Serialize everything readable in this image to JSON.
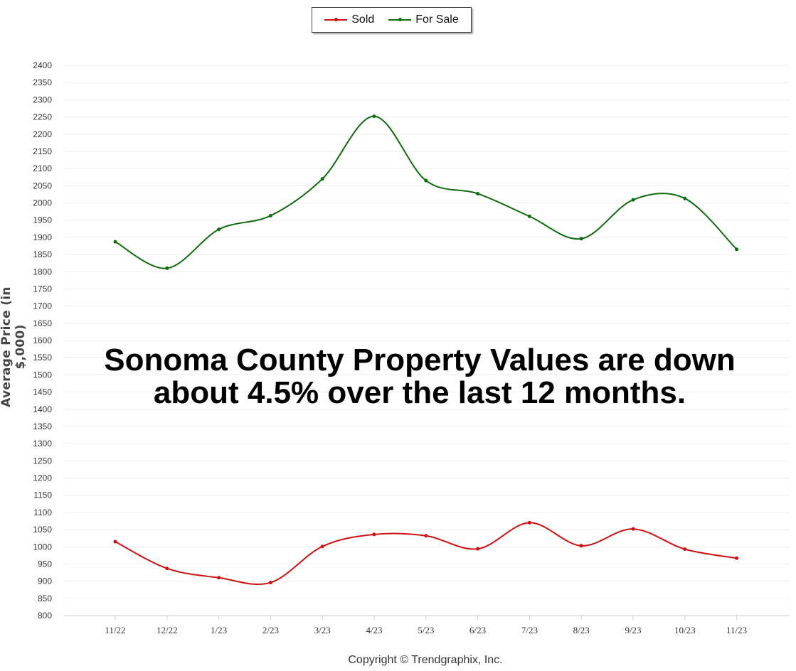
{
  "chart_data": {
    "type": "line",
    "ylabel": "Average Price (in $,000)",
    "ylim": [
      800,
      2400
    ],
    "ytick_step": 50,
    "categories": [
      "11/22",
      "12/22",
      "1/23",
      "2/23",
      "3/23",
      "4/23",
      "5/23",
      "6/23",
      "7/23",
      "8/23",
      "9/23",
      "10/23",
      "11/23"
    ],
    "series": [
      {
        "name": "Sold",
        "color": "#cc1111",
        "values": [
          1015,
          937,
          910,
          896,
          1001,
          1036,
          1032,
          994,
          1070,
          1003,
          1052,
          993,
          967
        ]
      },
      {
        "name": "For Sale",
        "color": "#0e6b0e",
        "values": [
          1887,
          1810,
          1923,
          1963,
          2070,
          2252,
          2065,
          2027,
          1961,
          1896,
          2009,
          2013,
          1865
        ]
      }
    ],
    "grid": true,
    "legend_position": "top-center",
    "annotation": "Sonoma County Property Values are down about 4.5% over the last 12 months."
  },
  "copyright": "Copyright © Trendgraphix, Inc."
}
